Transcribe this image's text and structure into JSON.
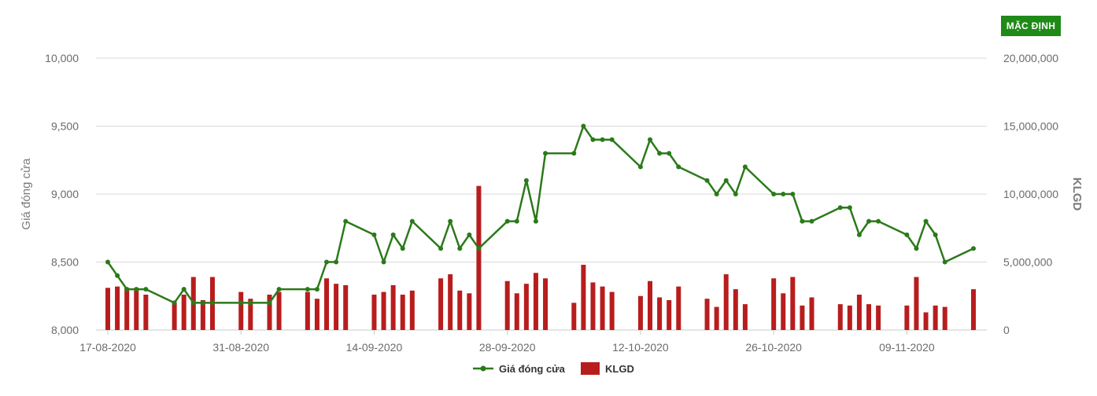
{
  "reset_button": {
    "label": "MẶC ĐỊNH"
  },
  "chart_data": {
    "type": "line+bar",
    "x_ticks": [
      "17-08-2020",
      "31-08-2020",
      "14-09-2020",
      "28-09-2020",
      "12-10-2020",
      "26-10-2020",
      "09-11-2020"
    ],
    "y_left": {
      "label": "Giá đóng cửa",
      "ticks": [
        "8,000",
        "8,500",
        "9,000",
        "9,500",
        "10,000"
      ],
      "range": [
        8000,
        10000
      ]
    },
    "y_right": {
      "label": "KLGD",
      "ticks": [
        "0",
        "5,000,000",
        "10,000,000",
        "15,000,000",
        "20,000,000"
      ],
      "range": [
        0,
        20000000
      ]
    },
    "legend": [
      "Giá đóng cửa",
      "KLGD"
    ],
    "colors": {
      "price_line": "#2b7a1a",
      "volume_bar": "#b81d1d",
      "grid": "#d9d9d9",
      "button": "#1f8a17"
    },
    "series": [
      {
        "name": "Giá đóng cửa",
        "type": "line",
        "points": [
          [
            "17-08-2020",
            8500
          ],
          [
            "18-08-2020",
            8400
          ],
          [
            "19-08-2020",
            8300
          ],
          [
            "20-08-2020",
            8300
          ],
          [
            "21-08-2020",
            8300
          ],
          [
            "24-08-2020",
            8200
          ],
          [
            "25-08-2020",
            8300
          ],
          [
            "26-08-2020",
            8200
          ],
          [
            "27-08-2020",
            8200
          ],
          [
            "28-08-2020",
            8200
          ],
          [
            "31-08-2020",
            8200
          ],
          [
            "01-09-2020",
            8200
          ],
          [
            "03-09-2020",
            8200
          ],
          [
            "04-09-2020",
            8300
          ],
          [
            "07-09-2020",
            8300
          ],
          [
            "08-09-2020",
            8300
          ],
          [
            "09-09-2020",
            8500
          ],
          [
            "10-09-2020",
            8500
          ],
          [
            "11-09-2020",
            8800
          ],
          [
            "14-09-2020",
            8700
          ],
          [
            "15-09-2020",
            8500
          ],
          [
            "16-09-2020",
            8700
          ],
          [
            "17-09-2020",
            8600
          ],
          [
            "18-09-2020",
            8800
          ],
          [
            "21-09-2020",
            8600
          ],
          [
            "22-09-2020",
            8800
          ],
          [
            "23-09-2020",
            8600
          ],
          [
            "24-09-2020",
            8700
          ],
          [
            "25-09-2020",
            8600
          ],
          [
            "28-09-2020",
            8800
          ],
          [
            "29-09-2020",
            8800
          ],
          [
            "30-09-2020",
            9100
          ],
          [
            "01-10-2020",
            8800
          ],
          [
            "02-10-2020",
            9300
          ],
          [
            "05-10-2020",
            9300
          ],
          [
            "06-10-2020",
            9500
          ],
          [
            "07-10-2020",
            9400
          ],
          [
            "08-10-2020",
            9400
          ],
          [
            "09-10-2020",
            9400
          ],
          [
            "12-10-2020",
            9200
          ],
          [
            "13-10-2020",
            9400
          ],
          [
            "14-10-2020",
            9300
          ],
          [
            "15-10-2020",
            9300
          ],
          [
            "16-10-2020",
            9200
          ],
          [
            "19-10-2020",
            9100
          ],
          [
            "20-10-2020",
            9000
          ],
          [
            "21-10-2020",
            9100
          ],
          [
            "22-10-2020",
            9000
          ],
          [
            "23-10-2020",
            9200
          ],
          [
            "26-10-2020",
            9000
          ],
          [
            "27-10-2020",
            9000
          ],
          [
            "28-10-2020",
            9000
          ],
          [
            "29-10-2020",
            8800
          ],
          [
            "30-10-2020",
            8800
          ],
          [
            "02-11-2020",
            8900
          ],
          [
            "03-11-2020",
            8900
          ],
          [
            "04-11-2020",
            8700
          ],
          [
            "05-11-2020",
            8800
          ],
          [
            "06-11-2020",
            8800
          ],
          [
            "09-11-2020",
            8700
          ],
          [
            "10-11-2020",
            8600
          ],
          [
            "11-11-2020",
            8800
          ],
          [
            "12-11-2020",
            8700
          ],
          [
            "13-11-2020",
            8500
          ],
          [
            "16-11-2020",
            8600
          ]
        ]
      },
      {
        "name": "KLGD",
        "type": "bar",
        "points": [
          [
            "17-08-2020",
            3100000
          ],
          [
            "18-08-2020",
            3200000
          ],
          [
            "19-08-2020",
            3100000
          ],
          [
            "20-08-2020",
            3100000
          ],
          [
            "21-08-2020",
            2600000
          ],
          [
            "24-08-2020",
            2000000
          ],
          [
            "25-08-2020",
            2600000
          ],
          [
            "26-08-2020",
            3900000
          ],
          [
            "27-08-2020",
            2200000
          ],
          [
            "28-08-2020",
            3900000
          ],
          [
            "31-08-2020",
            2800000
          ],
          [
            "01-09-2020",
            2300000
          ],
          [
            "03-09-2020",
            2600000
          ],
          [
            "04-09-2020",
            2800000
          ],
          [
            "07-09-2020",
            2800000
          ],
          [
            "08-09-2020",
            2300000
          ],
          [
            "09-09-2020",
            3800000
          ],
          [
            "10-09-2020",
            3400000
          ],
          [
            "11-09-2020",
            3300000
          ],
          [
            "14-09-2020",
            2600000
          ],
          [
            "15-09-2020",
            2800000
          ],
          [
            "16-09-2020",
            3300000
          ],
          [
            "17-09-2020",
            2600000
          ],
          [
            "18-09-2020",
            2900000
          ],
          [
            "21-09-2020",
            3800000
          ],
          [
            "22-09-2020",
            4100000
          ],
          [
            "23-09-2020",
            2900000
          ],
          [
            "24-09-2020",
            2700000
          ],
          [
            "25-09-2020",
            10600000
          ],
          [
            "28-09-2020",
            3600000
          ],
          [
            "29-09-2020",
            2700000
          ],
          [
            "30-09-2020",
            3400000
          ],
          [
            "01-10-2020",
            4200000
          ],
          [
            "02-10-2020",
            3800000
          ],
          [
            "05-10-2020",
            2000000
          ],
          [
            "06-10-2020",
            4800000
          ],
          [
            "07-10-2020",
            3500000
          ],
          [
            "08-10-2020",
            3200000
          ],
          [
            "09-10-2020",
            2800000
          ],
          [
            "12-10-2020",
            2500000
          ],
          [
            "13-10-2020",
            3600000
          ],
          [
            "14-10-2020",
            2400000
          ],
          [
            "15-10-2020",
            2200000
          ],
          [
            "16-10-2020",
            3200000
          ],
          [
            "19-10-2020",
            2300000
          ],
          [
            "20-10-2020",
            1700000
          ],
          [
            "21-10-2020",
            4100000
          ],
          [
            "22-10-2020",
            3000000
          ],
          [
            "23-10-2020",
            1900000
          ],
          [
            "26-10-2020",
            3800000
          ],
          [
            "27-10-2020",
            2700000
          ],
          [
            "28-10-2020",
            3900000
          ],
          [
            "29-10-2020",
            1800000
          ],
          [
            "30-10-2020",
            2400000
          ],
          [
            "02-11-2020",
            1900000
          ],
          [
            "03-11-2020",
            1800000
          ],
          [
            "04-11-2020",
            2600000
          ],
          [
            "05-11-2020",
            1900000
          ],
          [
            "06-11-2020",
            1800000
          ],
          [
            "09-11-2020",
            1800000
          ],
          [
            "10-11-2020",
            3900000
          ],
          [
            "11-11-2020",
            1300000
          ],
          [
            "12-11-2020",
            1800000
          ],
          [
            "13-11-2020",
            1700000
          ],
          [
            "16-11-2020",
            3000000
          ]
        ]
      }
    ]
  }
}
